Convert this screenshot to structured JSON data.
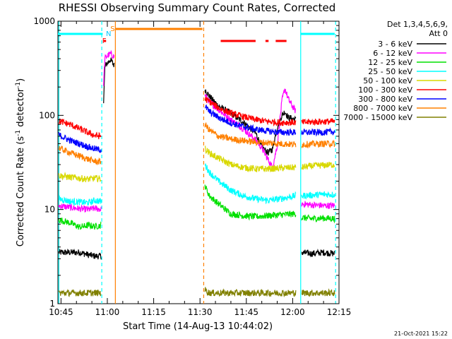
{
  "chart_data": {
    "type": "line",
    "title": "RHESSI Observing Summary Count Rates, Corrected",
    "xlabel": "Start Time (14-Aug-13 10:44:02)",
    "ylabel_main": "Corrected Count Rate (s",
    "ylabel_sup1": "-1",
    "ylabel_mid": " detector",
    "ylabel_sup2": "-1",
    "ylabel_end": ")",
    "yscale": "log",
    "ylim": [
      1,
      1000
    ],
    "xlim_min": [
      44.0,
      135.0
    ],
    "xticks": [
      {
        "v": 45,
        "label": "10:45"
      },
      {
        "v": 60,
        "label": "11:00"
      },
      {
        "v": 75,
        "label": "11:15"
      },
      {
        "v": 90,
        "label": "11:30"
      },
      {
        "v": 105,
        "label": "11:45"
      },
      {
        "v": 120,
        "label": "12:00"
      },
      {
        "v": 135,
        "label": "12:15"
      }
    ],
    "yticks": [
      {
        "v": 1,
        "label": "1"
      },
      {
        "v": 10,
        "label": "10"
      },
      {
        "v": 100,
        "label": "100"
      },
      {
        "v": 1000,
        "label": "1000"
      }
    ],
    "legend": {
      "header1": "Det 1,3,4,5,6,9,",
      "header2": "Att 0",
      "placement": "right",
      "items": [
        {
          "label": "3 - 6 keV",
          "color": "#000000"
        },
        {
          "label": "6 - 12 keV",
          "color": "#ff00ff"
        },
        {
          "label": "12 - 25 keV",
          "color": "#00e000"
        },
        {
          "label": "25 - 50 keV",
          "color": "#00ffff"
        },
        {
          "label": "50 - 100 keV",
          "color": "#d8d800"
        },
        {
          "label": "100 - 300 keV",
          "color": "#ff0000"
        },
        {
          "label": "300 - 800 keV",
          "color": "#0000ff"
        },
        {
          "label": "800 - 7000 keV",
          "color": "#ff8000"
        },
        {
          "label": "7000 - 15000 keV",
          "color": "#808000"
        }
      ]
    },
    "flags": [
      {
        "label": "F",
        "color": "#ff0000",
        "x": 59.0
      },
      {
        "label": "N",
        "color": "#00c8ff",
        "x": 60.4
      },
      {
        "label": "S",
        "color": "#ff8000",
        "x": 61.7
      }
    ],
    "flag_bars": [
      {
        "color": "#00ffff",
        "x0": 44.0,
        "x1": 58.5
      },
      {
        "color": "#ff0000",
        "x0": 58.8,
        "x1": 59.6
      },
      {
        "color": "#ff8000",
        "x0": 62.6,
        "x1": 90.8
      },
      {
        "color": "#ff0000",
        "x0": 96.7,
        "x1": 108.0
      },
      {
        "color": "#ff0000",
        "x0": 111.2,
        "x1": 112.2
      },
      {
        "color": "#ff0000",
        "x0": 114.5,
        "x1": 118.0
      },
      {
        "color": "#00ffff",
        "x0": 122.6,
        "x1": 133.6
      }
    ],
    "vlines": [
      {
        "color": "#00ffff",
        "x": 44.3,
        "style": "solid"
      },
      {
        "color": "#00ffff",
        "x": 58.2,
        "style": "dashed"
      },
      {
        "color": "#ff8000",
        "x": 62.6,
        "style": "solid"
      },
      {
        "color": "#ff8000",
        "x": 91.2,
        "style": "dashed"
      },
      {
        "color": "#00ffff",
        "x": 122.6,
        "style": "solid"
      },
      {
        "color": "#00ffff",
        "x": 133.9,
        "style": "dashed"
      }
    ],
    "series": [
      {
        "name": "3 - 6 keV",
        "color": "#000000",
        "segments": [
          {
            "x": [
              44.3,
              48,
              51,
              54,
              56,
              58.0
            ],
            "y": [
              3.5,
              3.5,
              3.5,
              3.3,
              3.2,
              3.2
            ]
          },
          {
            "x": [
              58.8,
              59.2,
              60,
              61,
              62.2
            ],
            "y": [
              140,
              330,
              360,
              390,
              340
            ]
          },
          {
            "x": [
              91.6,
              93,
              96,
              100,
              104,
              108,
              110,
              112,
              113.5,
              115,
              116.5,
              117.5,
              118.5,
              121
            ],
            "y": [
              190,
              160,
              125,
              105,
              85,
              65,
              46,
              40,
              44,
              75,
              100,
              110,
              95,
              90
            ]
          },
          {
            "x": [
              122.9,
              126,
              130,
              133.6
            ],
            "y": [
              3.5,
              3.4,
              3.5,
              3.4
            ]
          }
        ]
      },
      {
        "name": "6 - 12 keV",
        "color": "#ff00ff",
        "segments": [
          {
            "x": [
              44.3,
              48,
              51,
              54,
              56,
              58.0
            ],
            "y": [
              11,
              10.5,
              10.2,
              10.0,
              10.3,
              10.0
            ]
          },
          {
            "x": [
              58.8,
              59.2,
              60,
              61,
              62.2
            ],
            "y": [
              220,
              400,
              430,
              450,
              420
            ]
          },
          {
            "x": [
              91.6,
              93,
              96,
              100,
              104,
              108,
              110,
              112,
              113.5,
              115,
              116.5,
              117.5,
              118.5,
              121
            ],
            "y": [
              165,
              140,
              115,
              90,
              72,
              55,
              45,
              34,
              28,
              48,
              140,
              195,
              150,
              110
            ]
          },
          {
            "x": [
              122.9,
              126,
              130,
              133.6
            ],
            "y": [
              11.5,
              11.2,
              11.0,
              11.0
            ]
          }
        ]
      },
      {
        "name": "12 - 25 keV",
        "color": "#00e000",
        "segments": [
          {
            "x": [
              44.3,
              48,
              51,
              54,
              56,
              58.0
            ],
            "y": [
              7.8,
              7.2,
              6.5,
              6.8,
              6.6,
              6.8
            ]
          },
          {
            "x": [
              91.6,
              93,
              96,
              100,
              104,
              108,
              112,
              116,
              121
            ],
            "y": [
              18,
              14,
              11.5,
              9.0,
              8.6,
              8.4,
              8.6,
              8.8,
              9.0
            ]
          },
          {
            "x": [
              122.9,
              126,
              130,
              133.6
            ],
            "y": [
              8.2,
              8.0,
              8.1,
              8.0
            ]
          }
        ]
      },
      {
        "name": "25 - 50 keV",
        "color": "#00ffff",
        "segments": [
          {
            "x": [
              44.3,
              48,
              51,
              54,
              56,
              58.0
            ],
            "y": [
              13,
              12.2,
              12.0,
              11.8,
              12.5,
              12.2
            ]
          },
          {
            "x": [
              91.6,
              93,
              96,
              100,
              104,
              108,
              112,
              116,
              121
            ],
            "y": [
              30,
              25,
              20,
              16,
              14,
              13,
              12.5,
              13,
              14
            ]
          },
          {
            "x": [
              122.9,
              126,
              130,
              133.6
            ],
            "y": [
              14,
              14.2,
              14.5,
              14.4
            ]
          }
        ]
      },
      {
        "name": "50 - 100 keV",
        "color": "#d8d800",
        "segments": [
          {
            "x": [
              44.3,
              48,
              51,
              54,
              56,
              58.0
            ],
            "y": [
              23,
              22,
              21.5,
              21.0,
              21.5,
              21.2
            ]
          },
          {
            "x": [
              91.6,
              93,
              96,
              100,
              104,
              108,
              112,
              116,
              121
            ],
            "y": [
              44,
              40,
              35,
              30,
              28,
              27,
              27,
              27.5,
              28
            ]
          },
          {
            "x": [
              122.9,
              126,
              130,
              133.6
            ],
            "y": [
              28,
              29,
              29.5,
              30
            ]
          }
        ]
      },
      {
        "name": "100 - 300 keV",
        "color": "#ff0000",
        "segments": [
          {
            "x": [
              44.3,
              48,
              51,
              54,
              56,
              58.0
            ],
            "y": [
              87,
              80,
              72,
              65,
              61,
              60
            ]
          },
          {
            "x": [
              91.6,
              93,
              96,
              100,
              104,
              108,
              112,
              116,
              121
            ],
            "y": [
              150,
              140,
              120,
              105,
              97,
              90,
              86,
              84,
              84
            ]
          },
          {
            "x": [
              122.9,
              126,
              130,
              133.6
            ],
            "y": [
              84,
              85,
              86,
              86
            ]
          }
        ]
      },
      {
        "name": "300 - 800 keV",
        "color": "#0000ff",
        "segments": [
          {
            "x": [
              44.3,
              48,
              51,
              54,
              56,
              58.0
            ],
            "y": [
              62,
              54,
              50,
              46,
              44,
              43
            ]
          },
          {
            "x": [
              91.6,
              93,
              96,
              100,
              104,
              108,
              112,
              116,
              121
            ],
            "y": [
              125,
              110,
              95,
              83,
              76,
              71,
              68,
              66,
              66
            ]
          },
          {
            "x": [
              122.9,
              126,
              130,
              133.6
            ],
            "y": [
              66,
              66,
              66,
              67
            ]
          }
        ]
      },
      {
        "name": "800 - 7000 keV",
        "color": "#ff8000",
        "segments": [
          {
            "x": [
              44.3,
              48,
              51,
              54,
              56,
              58.0
            ],
            "y": [
              45,
              40,
              37,
              34,
              32.5,
              32
            ]
          },
          {
            "x": [
              91.6,
              93,
              96,
              100,
              104,
              108,
              112,
              116,
              121
            ],
            "y": [
              80,
              70,
              60,
              56,
              54,
              52,
              51,
              50,
              49
            ]
          },
          {
            "x": [
              122.9,
              126,
              130,
              133.6
            ],
            "y": [
              49,
              49.5,
              50,
              50
            ]
          }
        ]
      },
      {
        "name": "7000 - 15000 keV",
        "color": "#808000",
        "segments": [
          {
            "x": [
              44.3,
              48,
              51,
              54,
              56,
              58.0
            ],
            "y": [
              1.3,
              1.3,
              1.3,
              1.3,
              1.3,
              1.3
            ]
          },
          {
            "x": [
              91.6,
              93,
              96,
              100,
              104,
              108,
              112,
              116,
              121
            ],
            "y": [
              1.4,
              1.3,
              1.3,
              1.3,
              1.3,
              1.3,
              1.3,
              1.3,
              1.3
            ]
          },
          {
            "x": [
              122.9,
              126,
              130,
              133.6
            ],
            "y": [
              1.3,
              1.3,
              1.3,
              1.3
            ]
          }
        ]
      }
    ]
  },
  "footer_date": "21-Oct-2021 15:22"
}
